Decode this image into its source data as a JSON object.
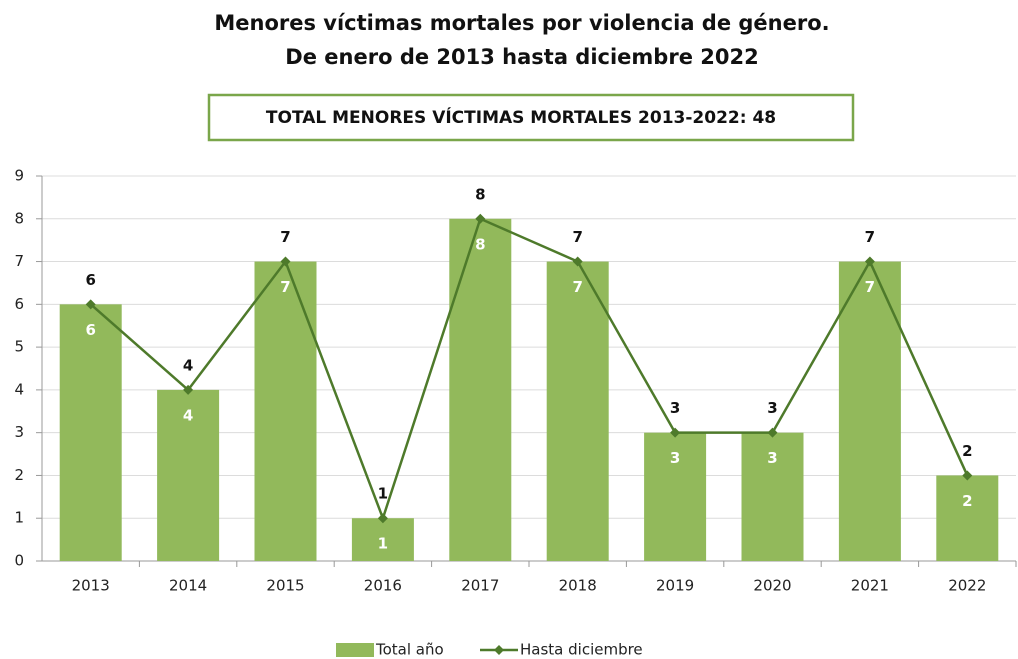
{
  "chart_data": {
    "type": "bar",
    "title": "Menores víctimas mortales por violencia de género.",
    "subtitle": "De enero de 2013 hasta diciembre 2022",
    "annotation": "TOTAL MENORES VÍCTIMAS MORTALES 2013-2022: 48",
    "categories": [
      "2013",
      "2014",
      "2015",
      "2016",
      "2017",
      "2018",
      "2019",
      "2020",
      "2021",
      "2022"
    ],
    "series": [
      {
        "name": "Total año",
        "type": "bar",
        "color": "#92b95b",
        "values": [
          6,
          4,
          7,
          1,
          8,
          7,
          3,
          3,
          7,
          2
        ]
      },
      {
        "name": "Hasta diciembre",
        "type": "line",
        "color": "#4e7a2b",
        "values": [
          6,
          4,
          7,
          1,
          8,
          7,
          3,
          3,
          7,
          2
        ]
      }
    ],
    "ylim": [
      0,
      9
    ],
    "yticks": [
      0,
      1,
      2,
      3,
      4,
      5,
      6,
      7,
      8,
      9
    ],
    "grid": true,
    "legend": "bottom"
  }
}
